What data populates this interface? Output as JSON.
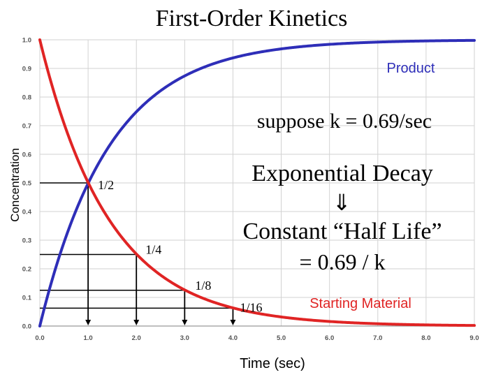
{
  "title": "First-Order Kinetics",
  "chart_data": {
    "type": "line",
    "xlabel": "Time (sec)",
    "ylabel": "Concentration",
    "xlim": [
      0,
      9
    ],
    "ylim": [
      0,
      1
    ],
    "x_ticks": [
      "0.0",
      "1.0",
      "2.0",
      "3.0",
      "4.0",
      "5.0",
      "6.0",
      "7.0",
      "8.0",
      "9.0"
    ],
    "y_ticks": [
      "0.0",
      "0.1",
      "0.2",
      "0.3",
      "0.4",
      "0.5",
      "0.6",
      "0.7",
      "0.8",
      "0.9",
      "1.0"
    ],
    "grid": true,
    "k": 0.69,
    "series": [
      {
        "name": "Product",
        "color": "#2e2eb8",
        "function": "1 - exp(-0.69 t)"
      },
      {
        "name": "Starting Material",
        "color": "#e02424",
        "function": "exp(-0.69 t)"
      }
    ],
    "half_life_markers": [
      {
        "label": "1/2",
        "t": 1.0,
        "y": 0.5
      },
      {
        "label": "1/4",
        "t": 2.0,
        "y": 0.25
      },
      {
        "label": "1/8",
        "t": 3.0,
        "y": 0.125
      },
      {
        "label": "1/16",
        "t": 4.0,
        "y": 0.0625
      }
    ],
    "annotations": {
      "suppose": "suppose  k = 0.69/sec",
      "decay": "Exponential Decay",
      "arrow": "⇓",
      "halflife": "Constant “Half Life”",
      "formula": "= 0.69 / k"
    }
  }
}
